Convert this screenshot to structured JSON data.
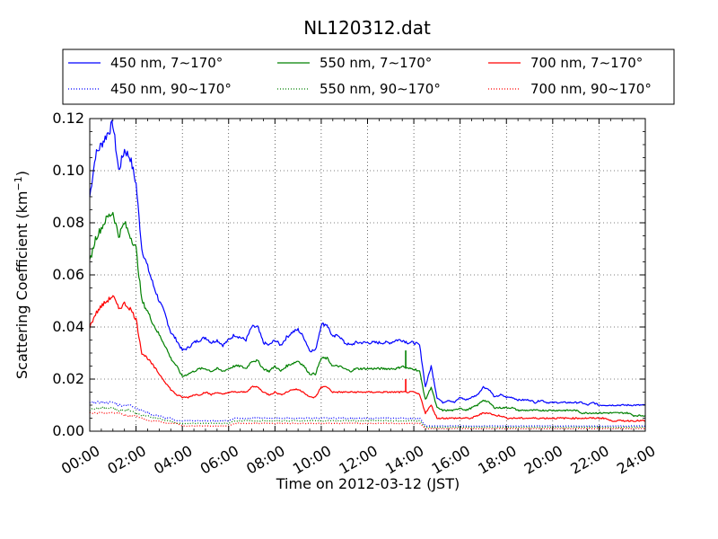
{
  "chart_data": {
    "type": "line",
    "title": "NL120312.dat",
    "xlabel": "Time on 2012-03-12 (JST)",
    "ylabel": "Scattering Coefficient (km",
    "ylabel_sup": "−1",
    "ylabel_close": ")",
    "xlim": [
      0,
      24
    ],
    "ylim": [
      0,
      0.12
    ],
    "grid": true,
    "legend_position": "top",
    "x_ticks": [
      0,
      2,
      4,
      6,
      8,
      10,
      12,
      14,
      16,
      18,
      20,
      22,
      24
    ],
    "x_tick_labels": [
      "00:00",
      "02:00",
      "04:00",
      "06:00",
      "08:00",
      "10:00",
      "12:00",
      "14:00",
      "16:00",
      "18:00",
      "20:00",
      "22:00",
      "24:00"
    ],
    "y_ticks": [
      0,
      0.02,
      0.04,
      0.06,
      0.08,
      0.1,
      0.12
    ],
    "y_tick_labels": [
      "0.00",
      "0.02",
      "0.04",
      "0.06",
      "0.08",
      "0.10",
      "0.12"
    ],
    "x": [
      0,
      0.25,
      0.5,
      0.75,
      1,
      1.25,
      1.5,
      1.75,
      2,
      2.25,
      2.5,
      2.75,
      3,
      3.25,
      3.5,
      3.75,
      4,
      4.25,
      4.5,
      4.75,
      5,
      5.25,
      5.5,
      5.75,
      6,
      6.25,
      6.5,
      6.75,
      7,
      7.25,
      7.5,
      7.75,
      8,
      8.25,
      8.5,
      8.75,
      9,
      9.25,
      9.5,
      9.75,
      10,
      10.25,
      10.5,
      10.75,
      11,
      11.25,
      11.5,
      11.75,
      12,
      12.25,
      12.5,
      12.75,
      13,
      13.25,
      13.5,
      13.75,
      14,
      14.25,
      14.5,
      14.75,
      15,
      15.25,
      15.5,
      15.75,
      16,
      16.25,
      16.5,
      16.75,
      17,
      17.25,
      17.5,
      17.75,
      18,
      18.25,
      18.5,
      18.75,
      19,
      19.25,
      19.5,
      19.75,
      20,
      20.25,
      20.5,
      20.75,
      21,
      21.25,
      21.5,
      21.75,
      22,
      22.25,
      22.5,
      22.75,
      23,
      23.25,
      23.5,
      23.75,
      24
    ],
    "series": [
      {
        "name": "450 nm, 7∼170°",
        "color": "#0000ff",
        "style": "solid",
        "values": [
          0.09,
          0.106,
          0.11,
          0.114,
          0.118,
          0.1,
          0.108,
          0.105,
          0.095,
          0.07,
          0.063,
          0.056,
          0.05,
          0.045,
          0.038,
          0.035,
          0.031,
          0.032,
          0.034,
          0.035,
          0.036,
          0.034,
          0.035,
          0.033,
          0.035,
          0.037,
          0.036,
          0.035,
          0.04,
          0.04,
          0.034,
          0.033,
          0.035,
          0.033,
          0.036,
          0.038,
          0.039,
          0.036,
          0.031,
          0.031,
          0.041,
          0.041,
          0.036,
          0.037,
          0.034,
          0.033,
          0.034,
          0.034,
          0.034,
          0.034,
          0.034,
          0.034,
          0.034,
          0.035,
          0.035,
          0.034,
          0.034,
          0.033,
          0.017,
          0.025,
          0.013,
          0.011,
          0.012,
          0.011,
          0.013,
          0.012,
          0.013,
          0.014,
          0.017,
          0.016,
          0.013,
          0.014,
          0.013,
          0.013,
          0.012,
          0.012,
          0.012,
          0.011,
          0.012,
          0.011,
          0.011,
          0.011,
          0.011,
          0.011,
          0.011,
          0.011,
          0.01,
          0.011,
          0.01,
          0.01,
          0.01,
          0.01,
          0.01,
          0.01,
          0.01,
          0.01,
          0.01
        ]
      },
      {
        "name": "450 nm, 90∼170°",
        "color": "#0000ff",
        "style": "dotted",
        "values": [
          0.011,
          0.011,
          0.011,
          0.011,
          0.011,
          0.01,
          0.01,
          0.01,
          0.009,
          0.008,
          0.007,
          0.006,
          0.006,
          0.005,
          0.005,
          0.004,
          0.004,
          0.004,
          0.004,
          0.004,
          0.004,
          0.004,
          0.004,
          0.004,
          0.004,
          0.005,
          0.005,
          0.005,
          0.005,
          0.005,
          0.005,
          0.005,
          0.005,
          0.005,
          0.005,
          0.005,
          0.005,
          0.005,
          0.005,
          0.005,
          0.005,
          0.005,
          0.005,
          0.005,
          0.005,
          0.005,
          0.005,
          0.005,
          0.005,
          0.005,
          0.005,
          0.005,
          0.005,
          0.005,
          0.005,
          0.005,
          0.005,
          0.005,
          0.002,
          0.002,
          0.002,
          0.002,
          0.002,
          0.002,
          0.002,
          0.002,
          0.002,
          0.002,
          0.002,
          0.002,
          0.002,
          0.002,
          0.002,
          0.002,
          0.002,
          0.002,
          0.002,
          0.002,
          0.002,
          0.002,
          0.002,
          0.002,
          0.002,
          0.002,
          0.002,
          0.002,
          0.002,
          0.002,
          0.002,
          0.002,
          0.002,
          0.002,
          0.002,
          0.002,
          0.002,
          0.002,
          0.002
        ]
      },
      {
        "name": "550 nm, 7∼170°",
        "color": "#008000",
        "style": "solid",
        "values": [
          0.065,
          0.074,
          0.078,
          0.082,
          0.084,
          0.075,
          0.08,
          0.075,
          0.07,
          0.05,
          0.046,
          0.041,
          0.037,
          0.033,
          0.028,
          0.025,
          0.021,
          0.022,
          0.023,
          0.024,
          0.024,
          0.023,
          0.024,
          0.023,
          0.024,
          0.025,
          0.025,
          0.024,
          0.027,
          0.027,
          0.024,
          0.023,
          0.025,
          0.023,
          0.025,
          0.026,
          0.027,
          0.025,
          0.022,
          0.022,
          0.028,
          0.028,
          0.025,
          0.025,
          0.024,
          0.023,
          0.024,
          0.024,
          0.024,
          0.024,
          0.024,
          0.024,
          0.024,
          0.024,
          0.025,
          0.024,
          0.024,
          0.023,
          0.012,
          0.017,
          0.009,
          0.008,
          0.008,
          0.008,
          0.009,
          0.008,
          0.009,
          0.01,
          0.012,
          0.011,
          0.009,
          0.009,
          0.009,
          0.009,
          0.008,
          0.008,
          0.008,
          0.008,
          0.008,
          0.008,
          0.008,
          0.008,
          0.008,
          0.008,
          0.008,
          0.007,
          0.007,
          0.007,
          0.007,
          0.007,
          0.007,
          0.007,
          0.007,
          0.007,
          0.006,
          0.006,
          0.006
        ]
      },
      {
        "name": "550 nm, 90∼170°",
        "color": "#008000",
        "style": "dotted",
        "values": [
          0.008,
          0.009,
          0.009,
          0.009,
          0.009,
          0.008,
          0.008,
          0.008,
          0.007,
          0.006,
          0.006,
          0.005,
          0.005,
          0.004,
          0.004,
          0.003,
          0.003,
          0.003,
          0.003,
          0.003,
          0.003,
          0.003,
          0.003,
          0.003,
          0.003,
          0.004,
          0.004,
          0.004,
          0.004,
          0.004,
          0.004,
          0.004,
          0.004,
          0.004,
          0.004,
          0.004,
          0.004,
          0.004,
          0.004,
          0.004,
          0.004,
          0.004,
          0.004,
          0.004,
          0.004,
          0.004,
          0.004,
          0.004,
          0.004,
          0.004,
          0.004,
          0.004,
          0.004,
          0.004,
          0.004,
          0.004,
          0.004,
          0.004,
          0.0015,
          0.0015,
          0.0015,
          0.0015,
          0.0015,
          0.0015,
          0.0015,
          0.0015,
          0.0015,
          0.0015,
          0.0015,
          0.0015,
          0.0015,
          0.0015,
          0.0015,
          0.0015,
          0.0015,
          0.0015,
          0.0015,
          0.0015,
          0.0015,
          0.0015,
          0.0015,
          0.0015,
          0.0015,
          0.0015,
          0.0015,
          0.0015,
          0.0015,
          0.0015,
          0.0015,
          0.0015,
          0.0015,
          0.0015,
          0.0015,
          0.0015,
          0.0015,
          0.0015,
          0.0015
        ]
      },
      {
        "name": "700 nm, 7∼170°",
        "color": "#ff0000",
        "style": "solid",
        "values": [
          0.04,
          0.045,
          0.048,
          0.05,
          0.052,
          0.047,
          0.049,
          0.047,
          0.043,
          0.03,
          0.028,
          0.025,
          0.022,
          0.019,
          0.016,
          0.014,
          0.013,
          0.013,
          0.014,
          0.014,
          0.015,
          0.014,
          0.015,
          0.014,
          0.015,
          0.015,
          0.015,
          0.015,
          0.017,
          0.017,
          0.015,
          0.014,
          0.015,
          0.014,
          0.015,
          0.016,
          0.016,
          0.015,
          0.013,
          0.013,
          0.017,
          0.017,
          0.015,
          0.015,
          0.015,
          0.015,
          0.015,
          0.015,
          0.015,
          0.015,
          0.015,
          0.015,
          0.015,
          0.015,
          0.015,
          0.015,
          0.015,
          0.014,
          0.007,
          0.01,
          0.005,
          0.005,
          0.005,
          0.005,
          0.005,
          0.005,
          0.005,
          0.006,
          0.007,
          0.007,
          0.006,
          0.006,
          0.005,
          0.005,
          0.005,
          0.005,
          0.005,
          0.005,
          0.005,
          0.005,
          0.005,
          0.005,
          0.005,
          0.005,
          0.005,
          0.005,
          0.005,
          0.005,
          0.005,
          0.005,
          0.004,
          0.004,
          0.004,
          0.004,
          0.004,
          0.004,
          0.004
        ]
      },
      {
        "name": "700 nm, 90∼170°",
        "color": "#ff0000",
        "style": "dotted",
        "values": [
          0.007,
          0.007,
          0.007,
          0.007,
          0.007,
          0.007,
          0.006,
          0.006,
          0.006,
          0.005,
          0.004,
          0.004,
          0.004,
          0.003,
          0.003,
          0.003,
          0.002,
          0.002,
          0.002,
          0.002,
          0.002,
          0.002,
          0.002,
          0.002,
          0.002,
          0.003,
          0.003,
          0.003,
          0.003,
          0.003,
          0.003,
          0.003,
          0.003,
          0.003,
          0.003,
          0.003,
          0.003,
          0.003,
          0.003,
          0.003,
          0.003,
          0.003,
          0.003,
          0.003,
          0.003,
          0.003,
          0.003,
          0.003,
          0.003,
          0.003,
          0.003,
          0.003,
          0.003,
          0.003,
          0.003,
          0.003,
          0.003,
          0.003,
          0.001,
          0.001,
          0.001,
          0.001,
          0.001,
          0.001,
          0.001,
          0.001,
          0.001,
          0.001,
          0.001,
          0.001,
          0.001,
          0.001,
          0.001,
          0.001,
          0.001,
          0.001,
          0.001,
          0.001,
          0.001,
          0.001,
          0.001,
          0.001,
          0.001,
          0.001,
          0.001,
          0.001,
          0.001,
          0.001,
          0.001,
          0.001,
          0.001,
          0.001,
          0.001,
          0.001,
          0.001,
          0.001,
          0.001
        ]
      }
    ],
    "annotations": [
      {
        "series": "550 nm, 7∼170°",
        "x": 13.65,
        "y": 0.031,
        "label": ""
      },
      {
        "series": "700 nm, 7∼170°",
        "x": 13.65,
        "y": 0.02,
        "label": ""
      }
    ]
  }
}
